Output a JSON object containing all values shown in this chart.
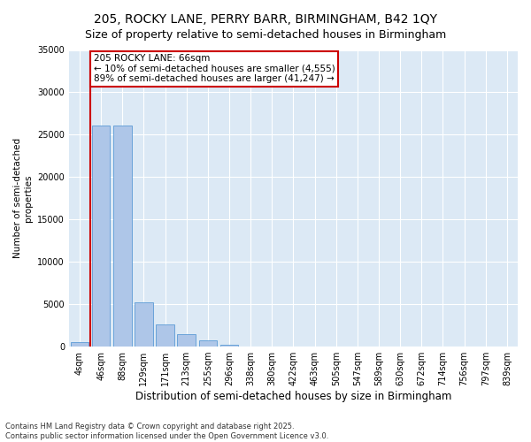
{
  "title1": "205, ROCKY LANE, PERRY BARR, BIRMINGHAM, B42 1QY",
  "title2": "Size of property relative to semi-detached houses in Birmingham",
  "xlabel": "Distribution of semi-detached houses by size in Birmingham",
  "ylabel": "Number of semi-detached\nproperties",
  "categories": [
    "4sqm",
    "46sqm",
    "88sqm",
    "129sqm",
    "171sqm",
    "213sqm",
    "255sqm",
    "296sqm",
    "338sqm",
    "380sqm",
    "422sqm",
    "463sqm",
    "505sqm",
    "547sqm",
    "589sqm",
    "630sqm",
    "672sqm",
    "714sqm",
    "756sqm",
    "797sqm",
    "839sqm"
  ],
  "values": [
    500,
    26100,
    26100,
    5200,
    2600,
    1500,
    700,
    200,
    50,
    10,
    5,
    2,
    1,
    0,
    0,
    0,
    0,
    0,
    0,
    0,
    0
  ],
  "bar_color": "#aec6e8",
  "bar_edge_color": "#5b9bd5",
  "property_size_label": "66sqm",
  "property_label": "205 ROCKY LANE: 66sqm",
  "pct_smaller": 10,
  "n_smaller": 4555,
  "pct_larger": 89,
  "n_larger": 41247,
  "vline_color": "#cc0000",
  "annotation_box_color": "#cc0000",
  "ylim": [
    0,
    35000
  ],
  "yticks": [
    0,
    5000,
    10000,
    15000,
    20000,
    25000,
    30000,
    35000
  ],
  "plot_bg_color": "#dce9f5",
  "footnote1": "Contains HM Land Registry data © Crown copyright and database right 2025.",
  "footnote2": "Contains public sector information licensed under the Open Government Licence v3.0.",
  "title1_fontsize": 10,
  "title2_fontsize": 9,
  "xlabel_fontsize": 8.5,
  "ylabel_fontsize": 7.5,
  "ann_fontsize": 7.5,
  "tick_fontsize": 7
}
